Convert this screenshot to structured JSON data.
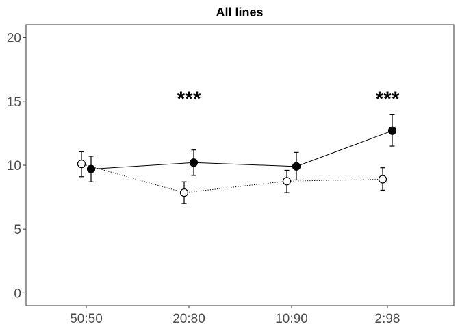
{
  "chart_data": {
    "type": "line",
    "title": "All lines",
    "xlabel": "",
    "ylabel": "",
    "categories": [
      "50:50",
      "20:80",
      "10:90",
      "2:98"
    ],
    "ylim": [
      -1,
      21
    ],
    "yticks": [
      0,
      5,
      10,
      15,
      20
    ],
    "grid": false,
    "series": [
      {
        "style": "open-circle-dotted",
        "color": "#000000",
        "values": [
          10.1,
          7.85,
          8.75,
          8.9
        ],
        "error_low": [
          9.1,
          7.0,
          7.85,
          8.05
        ],
        "error_high": [
          11.05,
          8.7,
          9.6,
          9.8
        ]
      },
      {
        "style": "filled-circle-solid",
        "color": "#000000",
        "values": [
          9.7,
          10.2,
          9.9,
          12.7
        ],
        "error_low": [
          8.7,
          9.2,
          8.85,
          11.5
        ],
        "error_high": [
          10.7,
          11.2,
          11.0,
          13.95
        ]
      }
    ],
    "annotations": [
      {
        "category": "20:80",
        "text": "***",
        "y": 15.2
      },
      {
        "category": "2:98",
        "text": "***",
        "y": 15.2
      }
    ]
  }
}
